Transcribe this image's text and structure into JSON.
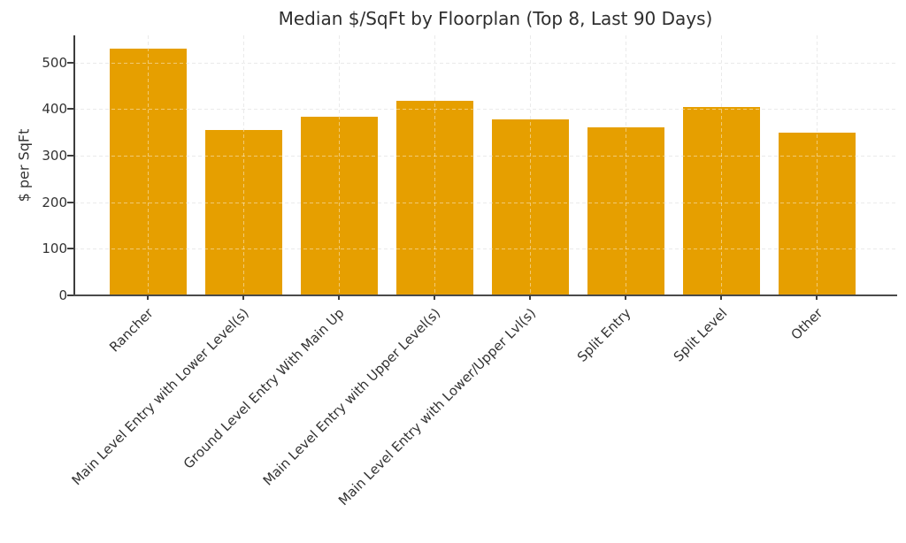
{
  "chart_data": {
    "type": "bar",
    "title": "Median $/SqFt by Floorplan (Top 8, Last 90 Days)",
    "xlabel": "",
    "ylabel": "$ per SqFt",
    "categories": [
      "Rancher",
      "Main Level Entry with Lower Level(s)",
      "Ground Level Entry With Main Up",
      "Main Level Entry with Upper Level(s)",
      "Main Level Entry with Lower/Upper Lvl(s)",
      "Split Entry",
      "Split Level",
      "Other"
    ],
    "values": [
      530,
      355,
      384,
      417,
      378,
      360,
      404,
      349
    ],
    "yticks": [
      0,
      100,
      200,
      300,
      400,
      500
    ],
    "ylim": [
      0,
      558
    ],
    "x_tick_rotation_deg": 45,
    "grid": "dashed, horizontal and vertical, drawn faintly over bars",
    "legend": "none",
    "colors": {
      "bar": "#E69F00",
      "grid": "#d8d8d8",
      "axis": "#3d3d3d",
      "text": "#333333",
      "title": "#2e2e2e",
      "background": "#ffffff"
    }
  }
}
